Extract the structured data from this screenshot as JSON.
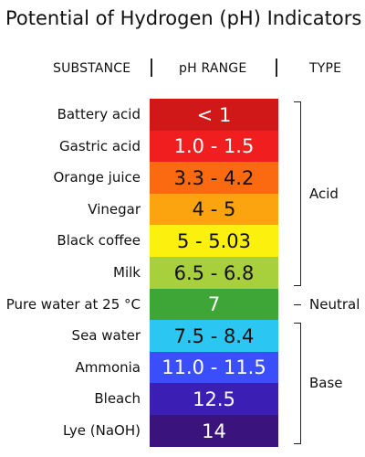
{
  "title": "Potential of Hydrogen (pH) Indicators",
  "headers": {
    "substance": "SUBSTANCE",
    "range": "pH RANGE",
    "type": "TYPE"
  },
  "rows": [
    {
      "substance": "Battery acid",
      "range": "< 1",
      "color": "#d01818",
      "text_color": "#ffffff"
    },
    {
      "substance": "Gastric acid",
      "range": "1.0 - 1.5",
      "color": "#f01e1e",
      "text_color": "#ffffff"
    },
    {
      "substance": "Orange juice",
      "range": "3.3 - 4.2",
      "color": "#fb6a10",
      "text_color": "#111111"
    },
    {
      "substance": "Vinegar",
      "range": "4 - 5",
      "color": "#fca410",
      "text_color": "#111111"
    },
    {
      "substance": "Black coffee",
      "range": "5 - 5.03",
      "color": "#fcf10e",
      "text_color": "#111111"
    },
    {
      "substance": "Milk",
      "range": "6.5 - 6.8",
      "color": "#a8cf3c",
      "text_color": "#111111"
    },
    {
      "substance": "Pure water at 25 °C",
      "range": "7",
      "color": "#3da637",
      "text_color": "#ffffff"
    },
    {
      "substance": "Sea water",
      "range": "7.5 - 8.4",
      "color": "#2bc7f2",
      "text_color": "#111111"
    },
    {
      "substance": "Ammonia",
      "range": "11.0 - 11.5",
      "color": "#3a4ffa",
      "text_color": "#ffffff"
    },
    {
      "substance": "Bleach",
      "range": "12.5",
      "color": "#3b1fb5",
      "text_color": "#ffffff"
    },
    {
      "substance": "Lye (NaOH)",
      "range": "14",
      "color": "#3b137d",
      "text_color": "#ffffff"
    }
  ],
  "types": [
    {
      "label": "Acid",
      "from_row": 0,
      "to_row": 5
    },
    {
      "label": "Neutral",
      "from_row": 6,
      "to_row": 6
    },
    {
      "label": "Base",
      "from_row": 7,
      "to_row": 10
    }
  ]
}
